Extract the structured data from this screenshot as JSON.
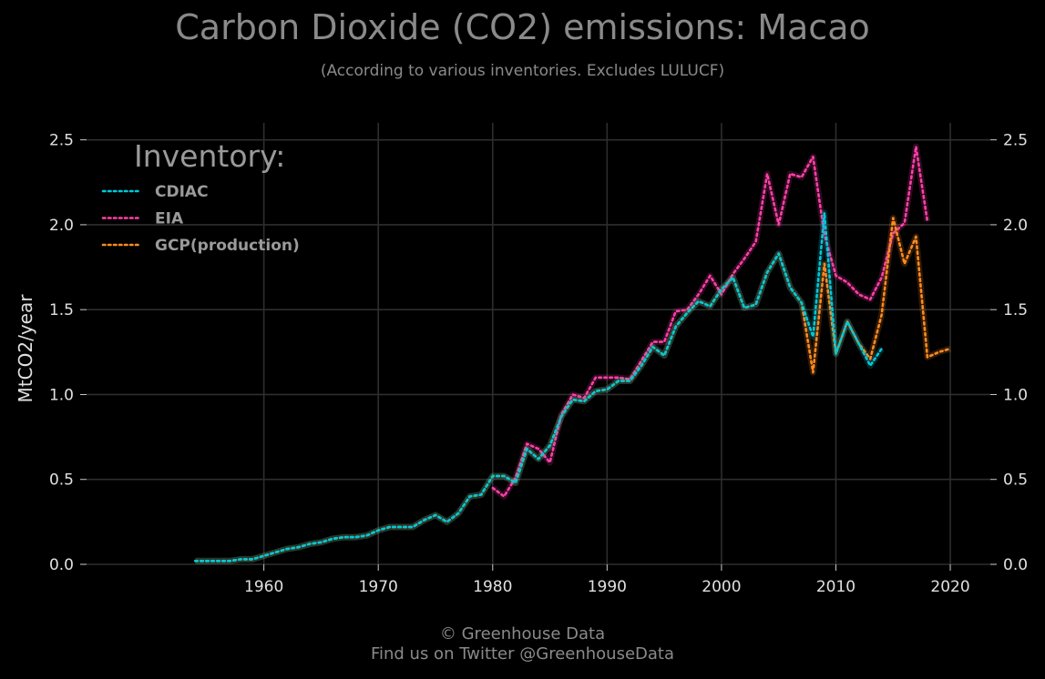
{
  "title": "Carbon Dioxide (CO2) emissions: Macao",
  "subtitle": "(According to various inventories. Excludes LULUCF)",
  "credit": {
    "line1": "© Greenhouse Data",
    "line2": "Find us on Twitter @GreenhouseData"
  },
  "colors": {
    "background": "#000000",
    "grid": "#2e2e2e",
    "CDIAC": "#00c8d8",
    "EIA": "#ff3fa8",
    "GCP(production)": "#ff8a20",
    "text": "#8a8a8a"
  },
  "chart_data": {
    "type": "line",
    "title": "Carbon Dioxide (CO2) emissions: Macao",
    "subtitle": "(According to various inventories. Excludes LULUCF)",
    "xlabel": "",
    "ylabel": "MtCO2/year",
    "xlim": [
      1944.5,
      2023.5
    ],
    "ylim": [
      0,
      2.6
    ],
    "x_ticks": [
      "1960",
      "1970",
      "1980",
      "1990",
      "2000",
      "2010",
      "2020"
    ],
    "x_tick_values": [
      1960,
      1970,
      1980,
      1990,
      2000,
      2010,
      2020
    ],
    "y_ticks": [
      "0.0",
      "0.5",
      "1.0",
      "1.5",
      "2.0",
      "2.5"
    ],
    "y_tick_values": [
      0,
      0.5,
      1.0,
      1.5,
      2.0,
      2.5
    ],
    "grid": true,
    "legend_title": "Inventory:",
    "legend_position": "top-left",
    "line_style": "dotted",
    "series": [
      {
        "name": "CDIAC",
        "x": [
          1954,
          1955,
          1956,
          1957,
          1958,
          1959,
          1960,
          1961,
          1962,
          1963,
          1964,
          1965,
          1966,
          1967,
          1968,
          1969,
          1970,
          1971,
          1972,
          1973,
          1974,
          1975,
          1976,
          1977,
          1978,
          1979,
          1980,
          1981,
          1982,
          1983,
          1984,
          1985,
          1986,
          1987,
          1988,
          1989,
          1990,
          1991,
          1992,
          1993,
          1994,
          1995,
          1996,
          1997,
          1998,
          1999,
          2000,
          2001,
          2002,
          2003,
          2004,
          2005,
          2006,
          2007,
          2008,
          2009,
          2010,
          2011,
          2012,
          2013,
          2014
        ],
        "y": [
          0.02,
          0.02,
          0.02,
          0.02,
          0.03,
          0.03,
          0.05,
          0.07,
          0.09,
          0.1,
          0.12,
          0.13,
          0.15,
          0.16,
          0.16,
          0.17,
          0.2,
          0.22,
          0.22,
          0.22,
          0.26,
          0.29,
          0.25,
          0.3,
          0.4,
          0.41,
          0.52,
          0.52,
          0.48,
          0.68,
          0.62,
          0.7,
          0.87,
          0.97,
          0.96,
          1.02,
          1.03,
          1.08,
          1.08,
          1.17,
          1.28,
          1.23,
          1.4,
          1.48,
          1.55,
          1.52,
          1.62,
          1.69,
          1.51,
          1.53,
          1.72,
          1.83,
          1.63,
          1.54,
          1.34,
          2.07,
          1.24,
          1.43,
          1.3,
          1.17,
          1.27
        ]
      },
      {
        "name": "EIA",
        "x": [
          1980,
          1981,
          1982,
          1983,
          1984,
          1985,
          1986,
          1987,
          1988,
          1989,
          1990,
          1991,
          1992,
          1993,
          1994,
          1995,
          1996,
          1997,
          1998,
          1999,
          2000,
          2001,
          2002,
          2003,
          2004,
          2005,
          2006,
          2007,
          2008,
          2009,
          2010,
          2011,
          2012,
          2013,
          2014,
          2015,
          2016,
          2017,
          2018
        ],
        "y": [
          0.45,
          0.4,
          0.51,
          0.71,
          0.68,
          0.6,
          0.88,
          1.0,
          0.98,
          1.1,
          1.1,
          1.1,
          1.09,
          1.2,
          1.31,
          1.31,
          1.49,
          1.5,
          1.59,
          1.7,
          1.59,
          1.71,
          1.8,
          1.9,
          2.3,
          2.0,
          2.3,
          2.28,
          2.4,
          1.94,
          1.7,
          1.66,
          1.59,
          1.56,
          1.69,
          1.95,
          2.01,
          2.46,
          2.02
        ]
      },
      {
        "name": "GCP(production)",
        "x": [
          1954,
          1955,
          1956,
          1957,
          1958,
          1959,
          1960,
          1961,
          1962,
          1963,
          1964,
          1965,
          1966,
          1967,
          1968,
          1969,
          1970,
          1971,
          1972,
          1973,
          1974,
          1975,
          1976,
          1977,
          1978,
          1979,
          1980,
          1981,
          1982,
          1983,
          1984,
          1985,
          1986,
          1987,
          1988,
          1989,
          1990,
          1991,
          1992,
          1993,
          1994,
          1995,
          1996,
          1997,
          1998,
          1999,
          2000,
          2001,
          2002,
          2003,
          2004,
          2005,
          2006,
          2007,
          2008,
          2009,
          2010,
          2011,
          2012,
          2013,
          2014,
          2015,
          2016,
          2017,
          2018,
          2019,
          2020
        ],
        "y": [
          0.02,
          0.02,
          0.02,
          0.02,
          0.03,
          0.03,
          0.05,
          0.07,
          0.09,
          0.1,
          0.12,
          0.13,
          0.15,
          0.16,
          0.16,
          0.17,
          0.2,
          0.22,
          0.22,
          0.22,
          0.26,
          0.29,
          0.25,
          0.3,
          0.4,
          0.41,
          0.52,
          0.52,
          0.48,
          0.68,
          0.62,
          0.7,
          0.87,
          0.97,
          0.96,
          1.02,
          1.03,
          1.08,
          1.08,
          1.17,
          1.28,
          1.23,
          1.4,
          1.48,
          1.55,
          1.52,
          1.62,
          1.69,
          1.51,
          1.53,
          1.72,
          1.83,
          1.63,
          1.54,
          1.13,
          1.77,
          1.24,
          1.43,
          1.3,
          1.21,
          1.47,
          2.04,
          1.77,
          1.93,
          1.22,
          1.25,
          1.27
        ]
      }
    ]
  }
}
